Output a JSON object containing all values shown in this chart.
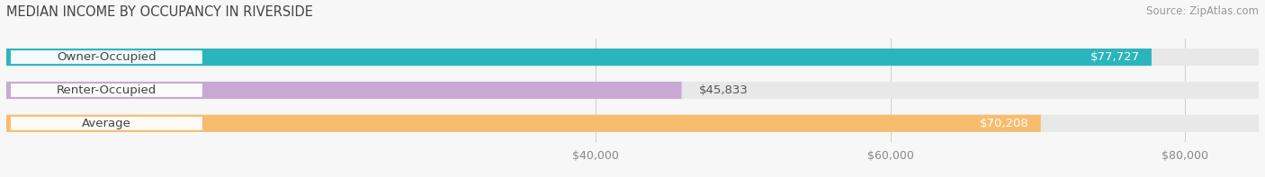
{
  "title": "MEDIAN INCOME BY OCCUPANCY IN RIVERSIDE",
  "source": "Source: ZipAtlas.com",
  "categories": [
    "Owner-Occupied",
    "Renter-Occupied",
    "Average"
  ],
  "values": [
    77727,
    45833,
    70208
  ],
  "labels": [
    "$77,727",
    "$45,833",
    "$70,208"
  ],
  "bar_colors": [
    "#2ab5bc",
    "#c9a8d3",
    "#f7bc6e"
  ],
  "track_color": "#e8e8e8",
  "label_colors_inside": [
    "#ffffff",
    "#ffffff",
    "#ffffff"
  ],
  "xmin": 0,
  "xmax": 85000,
  "xticks": [
    40000,
    60000,
    80000
  ],
  "xticklabels": [
    "$40,000",
    "$60,000",
    "$80,000"
  ],
  "background_color": "#f7f7f7",
  "bar_height": 0.52,
  "title_fontsize": 10.5,
  "source_fontsize": 8.5,
  "label_fontsize": 9.5,
  "cat_fontsize": 9.5,
  "rounding_size": 0.22
}
